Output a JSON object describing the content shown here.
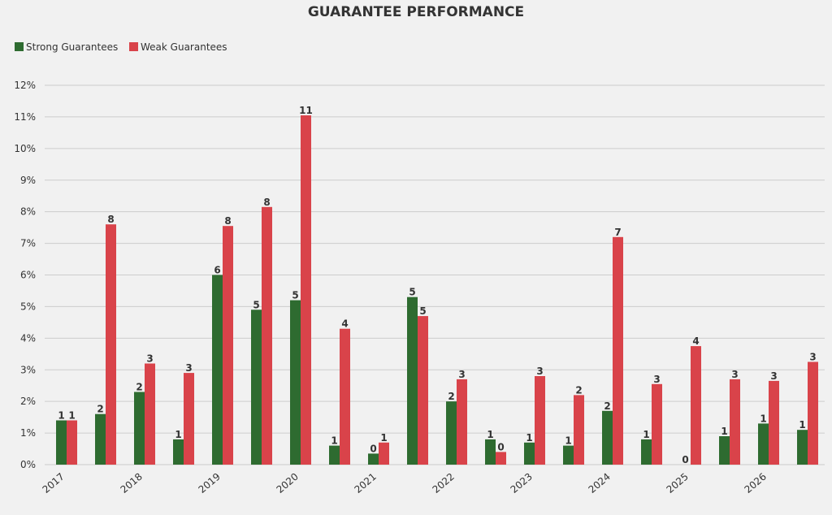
{
  "chart_data": {
    "type": "bar",
    "title": "GUARANTEE PERFORMANCE",
    "xlabel": "",
    "ylabel": "",
    "ylim": [
      0,
      12
    ],
    "y_ticks": [
      "0%",
      "1%",
      "2%",
      "3%",
      "4%",
      "5%",
      "6%",
      "7%",
      "8%",
      "9%",
      "10%",
      "11%",
      "12%"
    ],
    "grid": true,
    "legend_position": "top-left",
    "year_labels": [
      {
        "label": "2017",
        "at_group": 0
      },
      {
        "label": "2018",
        "at_group": 2
      },
      {
        "label": "2019",
        "at_group": 4
      },
      {
        "label": "2020",
        "at_group": 6
      },
      {
        "label": "2021",
        "at_group": 8
      },
      {
        "label": "2022",
        "at_group": 10
      },
      {
        "label": "2023",
        "at_group": 12
      },
      {
        "label": "2024",
        "at_group": 14
      },
      {
        "label": "2025",
        "at_group": 16
      },
      {
        "label": "2026",
        "at_group": 18
      }
    ],
    "groups": 20,
    "series": [
      {
        "name": "Strong Guarantees",
        "color": "#2e6b30",
        "values": [
          1.4,
          1.6,
          2.3,
          0.8,
          6.0,
          4.9,
          5.2,
          0.6,
          0.35,
          5.3,
          2.0,
          0.8,
          0.7,
          0.6,
          1.7,
          0.8,
          0,
          0.9,
          1.3,
          1.1
        ],
        "data_labels": [
          "1",
          "2",
          "2",
          "1",
          "6",
          "5",
          "5",
          "1",
          "0",
          "5",
          "2",
          "1",
          "1",
          "1",
          "2",
          "1",
          "0",
          "1",
          "1",
          "1"
        ]
      },
      {
        "name": "Weak Guarantees",
        "color": "#d9434a",
        "values": [
          1.4,
          7.6,
          3.2,
          2.9,
          7.55,
          8.15,
          11.05,
          4.3,
          0.7,
          4.7,
          2.7,
          0.4,
          2.8,
          2.2,
          7.2,
          2.55,
          3.75,
          2.7,
          2.65,
          3.25
        ],
        "data_labels": [
          "1",
          "8",
          "3",
          "3",
          "8",
          "8",
          "11",
          "4",
          "1",
          "5",
          "3",
          "0",
          "3",
          "2",
          "7",
          "3",
          "4",
          "3",
          "3",
          "3"
        ]
      }
    ]
  }
}
